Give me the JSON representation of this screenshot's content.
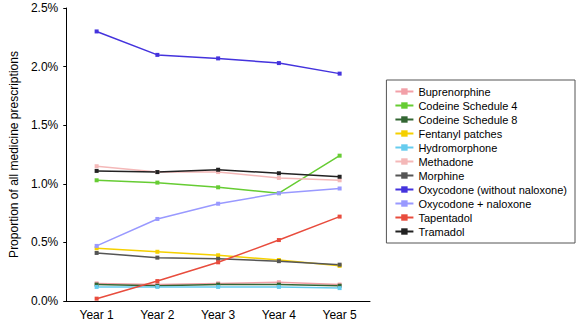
{
  "chart_data": {
    "type": "line",
    "y_label": "Proportion of all medicine prescriptions",
    "categories": [
      "Year 1",
      "Year 2",
      "Year 3",
      "Year 4",
      "Year 5"
    ],
    "ylim": [
      0,
      2.5
    ],
    "yticks": [
      {
        "value": 0,
        "label": "0.0%"
      },
      {
        "value": 0.5,
        "label": "0.5%"
      },
      {
        "value": 1,
        "label": "1.0%"
      },
      {
        "value": 1.5,
        "label": "1.5%"
      },
      {
        "value": 2,
        "label": "2.0%"
      },
      {
        "value": 2.5,
        "label": "2.5%"
      }
    ],
    "grid": false,
    "legend": "right",
    "marker": "square",
    "series": [
      {
        "name": "Buprenorphine",
        "color": "#f2a0a8",
        "values": [
          0.15,
          0.14,
          0.15,
          0.16,
          0.14
        ]
      },
      {
        "name": "Codeine Schedule 4",
        "color": "#66cc33",
        "values": [
          1.03,
          1.01,
          0.97,
          0.92,
          1.24
        ]
      },
      {
        "name": "Codeine Schedule 8",
        "color": "#336633",
        "values": [
          0.14,
          0.13,
          0.14,
          0.14,
          0.13
        ]
      },
      {
        "name": "Fentanyl patches",
        "color": "#f5d000",
        "values": [
          0.45,
          0.42,
          0.39,
          0.35,
          0.3
        ]
      },
      {
        "name": "Hydromorphone",
        "color": "#66ccee",
        "values": [
          0.12,
          0.12,
          0.12,
          0.12,
          0.11
        ]
      },
      {
        "name": "Methadone",
        "color": "#f4b8b8",
        "values": [
          1.15,
          1.1,
          1.1,
          1.05,
          1.03
        ]
      },
      {
        "name": "Morphine",
        "color": "#555555",
        "values": [
          0.41,
          0.37,
          0.36,
          0.34,
          0.31
        ]
      },
      {
        "name": "Oxycodone (without naloxone)",
        "color": "#4433dd",
        "values": [
          2.3,
          2.1,
          2.07,
          2.03,
          1.94
        ]
      },
      {
        "name": "Oxycodone + naloxone",
        "color": "#9999ff",
        "values": [
          0.47,
          0.7,
          0.83,
          0.92,
          0.96
        ]
      },
      {
        "name": "Tapentadol",
        "color": "#e84c3d",
        "values": [
          0.02,
          0.17,
          0.33,
          0.52,
          0.72
        ]
      },
      {
        "name": "Tramadol",
        "color": "#222222",
        "values": [
          1.11,
          1.1,
          1.12,
          1.09,
          1.06
        ]
      }
    ]
  }
}
